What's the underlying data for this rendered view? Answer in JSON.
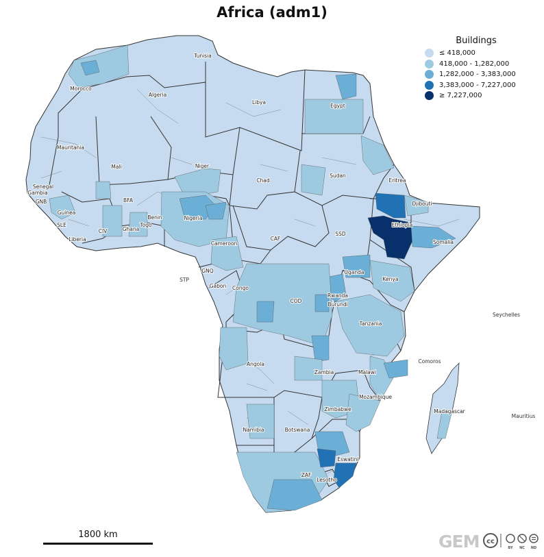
{
  "map": {
    "title": "Africa (adm1)",
    "legend": {
      "title": "Buildings",
      "items": [
        {
          "label": "≤ 418,000",
          "color": "#c6dbef"
        },
        {
          "label": "418,000 - 1,282,000",
          "color": "#9ecae1"
        },
        {
          "label": "1,282,000 - 3,383,000",
          "color": "#6baed6"
        },
        {
          "label": "3,383,000 - 7,227,000",
          "color": "#2171b5"
        },
        {
          "label": "≥ 7,227,000",
          "color": "#08306b"
        }
      ]
    },
    "scale_bar": {
      "label": "1800 km"
    },
    "logos": {
      "gem": "GEM",
      "license": [
        "BY",
        "NC",
        "ND"
      ]
    },
    "country_labels": {
      "morocco": "Morocco",
      "algeria": "Algeria",
      "tunisia": "Tunisia",
      "libya": "Libya",
      "egypt": "Egypt",
      "mauritania": "Mauritania",
      "mali": "Mali",
      "niger": "Niger",
      "chad": "Chad",
      "sudan": "Sudan",
      "eritrea": "Eritrea",
      "djibouti": "Djibouti",
      "ethiopia": "Ethiopia",
      "somalia": "Somalia",
      "senegal": "Senegal",
      "gambia": "Gambia",
      "gnb": "GNB",
      "guinea": "Guinea",
      "sle": "SLE",
      "liberia": "Liberia",
      "civ": "CIV",
      "bfa": "BFA",
      "ghana": "Ghana",
      "togo": "Togo",
      "benin": "Benin",
      "nigeria": "Nigeria",
      "cameroon": "Cameroon",
      "caf": "CAF",
      "ssd": "SSD",
      "stp": "STP",
      "gnq": "GNQ",
      "gabon": "Gabon",
      "congo": "Congo",
      "cod": "COD",
      "uganda": "Uganda",
      "kenya": "Kenya",
      "rwanda": "Rwanda",
      "burundi": "Burundi",
      "tanzania": "Tanzania",
      "seychelles": "Seychelles",
      "comoros": "Comoros",
      "angola": "Angola",
      "zambia": "Zambia",
      "malawi": "Malawi",
      "mozambique": "Mozambique",
      "zimbabwe": "Zimbabwe",
      "madagascar": "Madagascar",
      "mauritius": "Mauritius",
      "namibia": "Namibia",
      "botswana": "Botswana",
      "zaf": "ZAF",
      "eswatini": "Eswatini",
      "lesotho": "Lesotho"
    }
  }
}
